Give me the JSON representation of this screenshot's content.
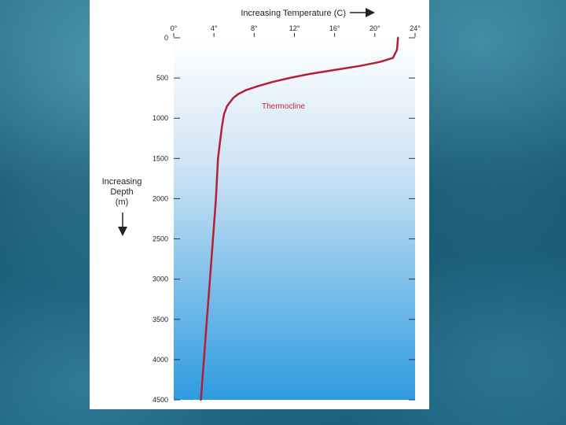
{
  "background": {
    "theme": "underwater-water-texture",
    "accent": "#0f5470"
  },
  "chart_data": {
    "type": "line",
    "xlabel": "Increasing Temperature (C)",
    "ylabel_lines": [
      "Increasing",
      "Depth",
      "(m)"
    ],
    "x_ticks": [
      "0°",
      "4°",
      "8°",
      "12°",
      "16°",
      "20°",
      "24°"
    ],
    "x_tick_values": [
      0,
      4,
      8,
      12,
      16,
      20,
      24
    ],
    "y_ticks": [
      "0",
      "500",
      "1000",
      "1500",
      "2000",
      "2500",
      "3000",
      "3500",
      "4000",
      "4500"
    ],
    "y_tick_values": [
      0,
      500,
      1000,
      1500,
      2000,
      2500,
      3000,
      3500,
      4000,
      4500
    ],
    "xlim": [
      0,
      24
    ],
    "ylim": [
      0,
      4500
    ],
    "y_inverted": true,
    "annotation": "Thermocline",
    "series": [
      {
        "color": "#b51f35",
        "x": [
          22.3,
          22.2,
          21.8,
          20.5,
          18.5,
          16.0,
          13.5,
          11.5,
          9.8,
          8.4,
          7.2,
          6.4,
          5.9,
          5.3,
          5.0,
          4.8,
          4.6,
          4.4,
          4.2,
          3.9,
          3.6,
          3.3,
          3.0,
          2.7
        ],
        "y": [
          0,
          150,
          250,
          300,
          350,
          400,
          450,
          500,
          550,
          600,
          650,
          700,
          750,
          850,
          950,
          1100,
          1300,
          1500,
          2000,
          2500,
          3000,
          3500,
          4000,
          4500
        ]
      }
    ],
    "grid": false,
    "plot_background": "gradient-light-to-blue"
  }
}
